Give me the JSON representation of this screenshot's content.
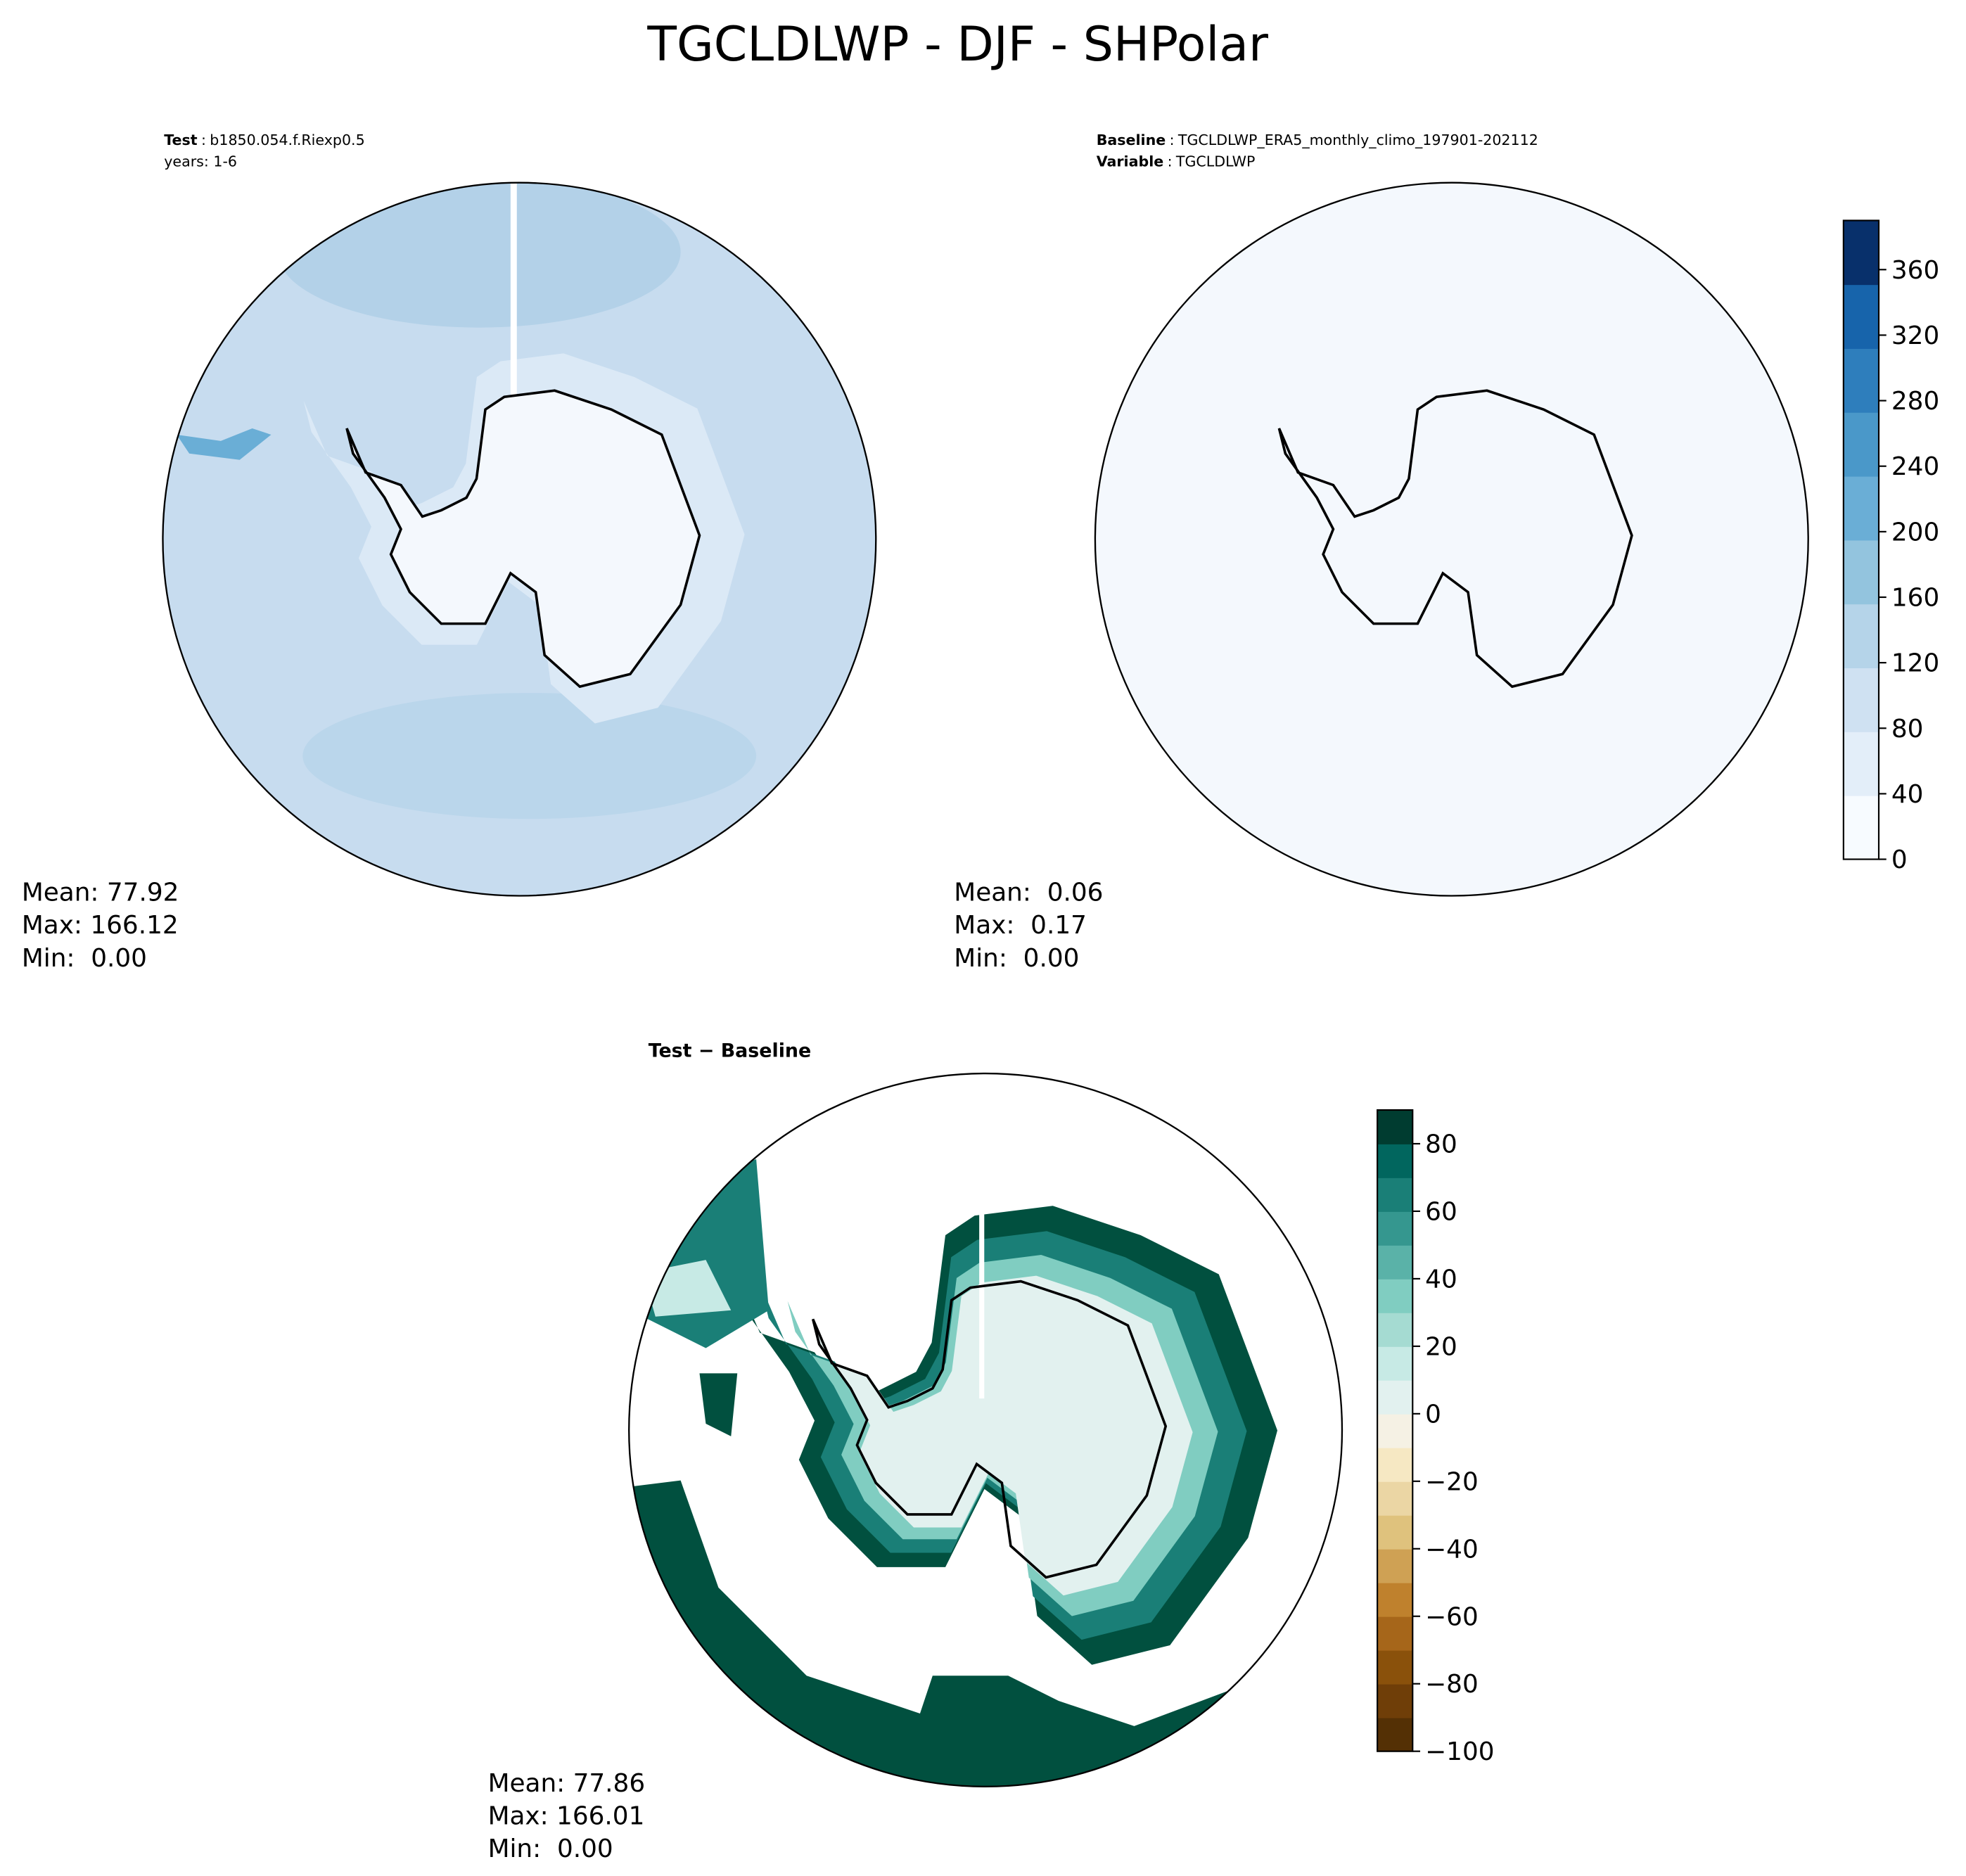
{
  "title": "TGCLDLWP - DJF - SHPolar",
  "panels": [
    {
      "label_lines": [
        [
          "Test",
          ":",
          "b1850.054.f.Riexp0.5"
        ],
        [
          "years: 1-6"
        ]
      ],
      "stats": [
        "Mean: 77.92",
        "Max: 166.12",
        "Min:  0.00"
      ]
    },
    {
      "label_lines": [
        [
          "Baseline",
          ":",
          "TGCLDLWP_ERA5_monthly_climo_197901-202112"
        ],
        [
          "Variable",
          ":",
          "TGCLDLWP"
        ]
      ],
      "stats": [
        "Mean:  0.06",
        "Max:  0.17",
        "Min:  0.00"
      ]
    },
    {
      "label_lines": [
        [
          "Test − Baseline"
        ]
      ],
      "stats": [
        "Mean: 77.86",
        "Max: 166.01",
        "Min:  0.00"
      ]
    }
  ],
  "colorbars": [
    {
      "ylim": [
        0,
        390
      ],
      "yticks": [
        0,
        40,
        80,
        120,
        160,
        200,
        240,
        280,
        320,
        360
      ],
      "colors": [
        "#f7fbff",
        "#e3eef9",
        "#cfe1f2",
        "#b5d4e9",
        "#93c4de",
        "#6aaed6",
        "#4a98c9",
        "#2e7ebc",
        "#1764ab",
        "#08306b"
      ]
    },
    {
      "ylim": [
        -100,
        90
      ],
      "yticks": [
        {
          "value": -100,
          "label": "−100"
        },
        {
          "value": -80,
          "label": "−80"
        },
        {
          "value": -60,
          "label": "−60"
        },
        {
          "value": -40,
          "label": "−40"
        },
        {
          "value": -20,
          "label": "−20"
        },
        0,
        20,
        40,
        60,
        80
      ],
      "colors": [
        "#543005",
        "#6f3e08",
        "#8a510b",
        "#a6661a",
        "#bf812d",
        "#cfa154",
        "#dfc27d",
        "#ebd6a4",
        "#f6e8c3",
        "#f5f1e4",
        "#e2f1ef",
        "#c7eae5",
        "#a5dbd2",
        "#80cdc1",
        "#5ab2a8",
        "#35978f",
        "#1a7f77",
        "#01665e",
        "#003c30"
      ]
    }
  ]
}
